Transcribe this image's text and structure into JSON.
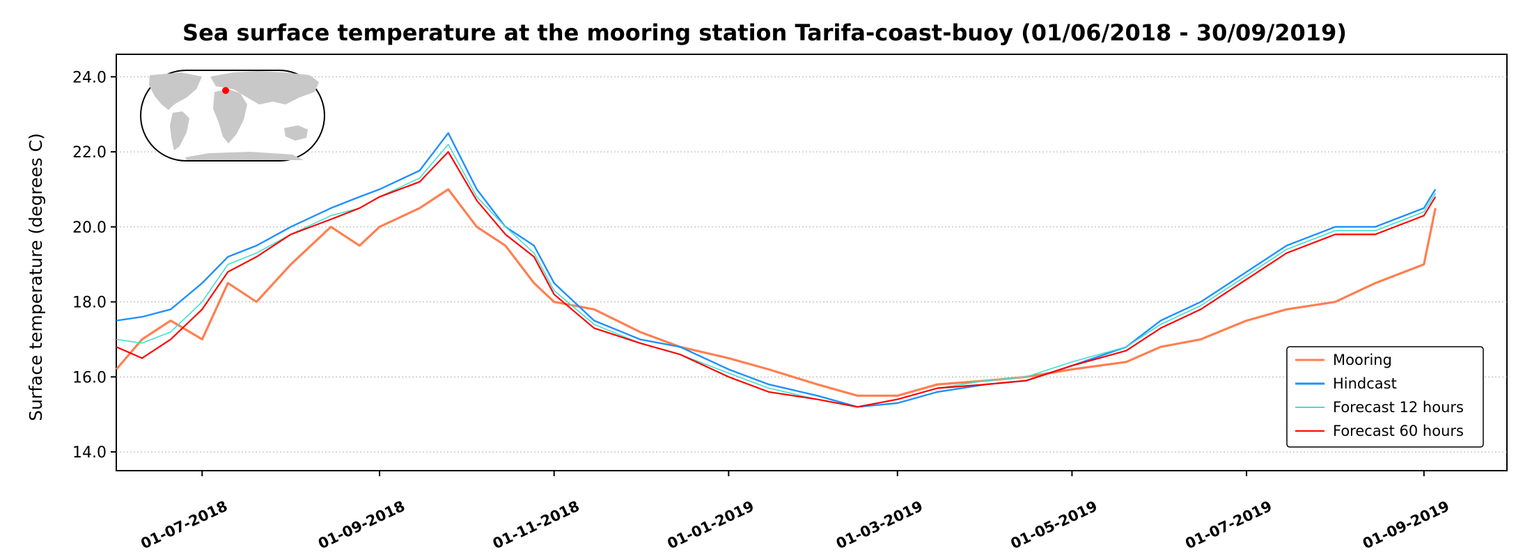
{
  "chart_data": {
    "type": "line",
    "title": "Sea surface temperature at the mooring station Tarifa-coast-buoy (01/06/2018 - 30/09/2019)",
    "xlabel": "",
    "ylabel": "Surface temperature (degrees C)",
    "x_range": [
      "2018-06-01",
      "2019-09-30"
    ],
    "ylim": [
      13.5,
      24.6
    ],
    "yticks": [
      14.0,
      16.0,
      18.0,
      20.0,
      22.0,
      24.0
    ],
    "ytick_labels": [
      "14.0",
      "16.0",
      "18.0",
      "20.0",
      "22.0",
      "24.0"
    ],
    "xticks": [
      "2018-07-01",
      "2018-09-01",
      "2018-11-01",
      "2019-01-01",
      "2019-03-01",
      "2019-05-01",
      "2019-07-01",
      "2019-09-01"
    ],
    "xtick_labels": [
      "01-07-2018",
      "01-09-2018",
      "01-11-2018",
      "01-01-2019",
      "01-03-2019",
      "01-05-2019",
      "01-07-2019",
      "01-09-2019"
    ],
    "grid": "horizontal dotted",
    "legend_position": "lower-right",
    "inset_map": "world map with station marker",
    "series": [
      {
        "name": "Mooring",
        "color": "#ff7f50",
        "x": [
          "2018-06-01",
          "2018-06-10",
          "2018-06-20",
          "2018-07-01",
          "2018-07-10",
          "2018-07-20",
          "2018-08-01",
          "2018-08-15",
          "2018-08-25",
          "2018-09-01",
          "2018-09-15",
          "2018-09-25",
          "2018-10-05",
          "2018-10-15",
          "2018-10-25",
          "2018-11-01",
          "2018-11-15",
          "2018-12-01",
          "2018-12-15",
          "2019-01-01",
          "2019-01-15",
          "2019-02-01",
          "2019-02-15",
          "2019-03-01",
          "2019-03-15",
          "2019-04-01",
          "2019-04-15",
          "2019-05-01",
          "2019-05-20",
          "2019-06-01",
          "2019-06-15",
          "2019-07-01",
          "2019-07-15",
          "2019-08-01",
          "2019-08-15",
          "2019-09-01",
          "2019-09-05"
        ],
        "y": [
          16.2,
          17.0,
          17.5,
          17.0,
          18.5,
          18.0,
          19.0,
          20.0,
          19.5,
          20.0,
          20.5,
          21.0,
          20.0,
          19.5,
          18.5,
          18.0,
          17.8,
          17.2,
          16.8,
          16.5,
          16.2,
          15.8,
          15.5,
          15.5,
          15.8,
          15.9,
          16.0,
          16.2,
          16.4,
          16.8,
          17.0,
          17.5,
          17.8,
          18.0,
          18.5,
          19.0,
          20.5
        ]
      },
      {
        "name": "Hindcast",
        "color": "#1e90ff",
        "x": [
          "2018-06-01",
          "2018-06-10",
          "2018-06-20",
          "2018-07-01",
          "2018-07-10",
          "2018-07-20",
          "2018-08-01",
          "2018-08-15",
          "2018-08-25",
          "2018-09-01",
          "2018-09-15",
          "2018-09-25",
          "2018-10-05",
          "2018-10-15",
          "2018-10-25",
          "2018-11-01",
          "2018-11-15",
          "2018-12-01",
          "2018-12-15",
          "2019-01-01",
          "2019-01-15",
          "2019-02-01",
          "2019-02-15",
          "2019-03-01",
          "2019-03-15",
          "2019-04-01",
          "2019-04-15",
          "2019-05-01",
          "2019-05-20",
          "2019-06-01",
          "2019-06-15",
          "2019-07-01",
          "2019-07-15",
          "2019-08-01",
          "2019-08-15",
          "2019-09-01",
          "2019-09-05"
        ],
        "y": [
          17.5,
          17.6,
          17.8,
          18.5,
          19.2,
          19.5,
          20.0,
          20.5,
          20.8,
          21.0,
          21.5,
          22.5,
          21.0,
          20.0,
          19.5,
          18.5,
          17.5,
          17.0,
          16.8,
          16.2,
          15.8,
          15.5,
          15.2,
          15.3,
          15.6,
          15.8,
          15.9,
          16.3,
          16.8,
          17.5,
          18.0,
          18.8,
          19.5,
          20.0,
          20.0,
          20.5,
          21.0
        ]
      },
      {
        "name": "Forecast 12 hours",
        "color": "#40e0d0",
        "x": [
          "2018-06-01",
          "2018-06-10",
          "2018-06-20",
          "2018-07-01",
          "2018-07-10",
          "2018-07-20",
          "2018-08-01",
          "2018-08-15",
          "2018-08-25",
          "2018-09-01",
          "2018-09-15",
          "2018-09-25",
          "2018-10-05",
          "2018-10-15",
          "2018-10-25",
          "2018-11-01",
          "2018-11-15",
          "2018-12-01",
          "2018-12-15",
          "2019-01-01",
          "2019-01-15",
          "2019-02-01",
          "2019-02-15",
          "2019-03-01",
          "2019-03-15",
          "2019-04-01",
          "2019-04-15",
          "2019-05-01",
          "2019-05-20",
          "2019-06-01",
          "2019-06-15",
          "2019-07-01",
          "2019-07-15",
          "2019-08-01",
          "2019-08-15",
          "2019-09-01",
          "2019-09-05"
        ],
        "y": [
          17.0,
          16.9,
          17.2,
          18.0,
          19.0,
          19.3,
          19.8,
          20.3,
          20.5,
          20.8,
          21.3,
          22.2,
          20.8,
          20.0,
          19.3,
          18.3,
          17.4,
          16.9,
          16.6,
          16.1,
          15.7,
          15.4,
          15.2,
          15.4,
          15.7,
          15.9,
          16.0,
          16.4,
          16.8,
          17.4,
          17.9,
          18.7,
          19.4,
          19.9,
          19.9,
          20.4,
          20.9
        ]
      },
      {
        "name": "Forecast 60 hours",
        "color": "#ff0000",
        "x": [
          "2018-06-01",
          "2018-06-10",
          "2018-06-20",
          "2018-07-01",
          "2018-07-10",
          "2018-07-20",
          "2018-08-01",
          "2018-08-15",
          "2018-08-25",
          "2018-09-01",
          "2018-09-15",
          "2018-09-25",
          "2018-10-05",
          "2018-10-15",
          "2018-10-25",
          "2018-11-01",
          "2018-11-15",
          "2018-12-01",
          "2018-12-15",
          "2019-01-01",
          "2019-01-15",
          "2019-02-01",
          "2019-02-15",
          "2019-03-01",
          "2019-03-15",
          "2019-04-01",
          "2019-04-15",
          "2019-05-01",
          "2019-05-20",
          "2019-06-01",
          "2019-06-15",
          "2019-07-01",
          "2019-07-15",
          "2019-08-01",
          "2019-08-15",
          "2019-09-01",
          "2019-09-05"
        ],
        "y": [
          16.8,
          16.5,
          17.0,
          17.8,
          18.8,
          19.2,
          19.8,
          20.2,
          20.5,
          20.8,
          21.2,
          22.0,
          20.7,
          19.8,
          19.2,
          18.2,
          17.3,
          16.9,
          16.6,
          16.0,
          15.6,
          15.4,
          15.2,
          15.4,
          15.7,
          15.8,
          15.9,
          16.3,
          16.7,
          17.3,
          17.8,
          18.6,
          19.3,
          19.8,
          19.8,
          20.3,
          20.8
        ]
      }
    ]
  }
}
